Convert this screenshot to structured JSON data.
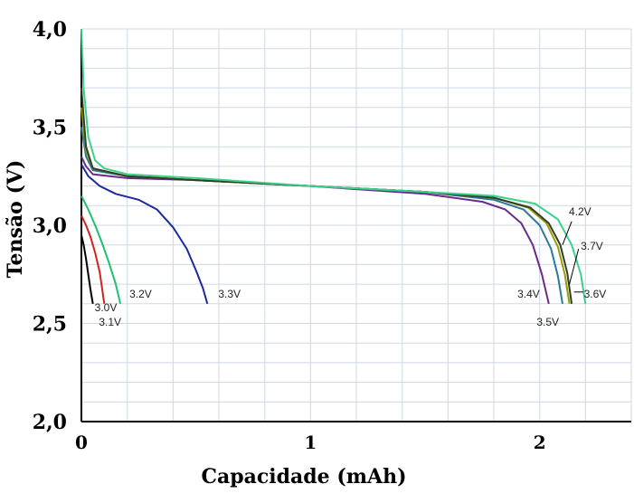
{
  "chart_data": {
    "type": "line",
    "title": "",
    "xlabel": "Capacidade (mAh)",
    "ylabel": "Tensão (V)",
    "xlim": [
      0,
      2.4
    ],
    "ylim": [
      2.0,
      4.0
    ],
    "x_ticks": [
      0,
      1,
      2
    ],
    "x_tick_labels": [
      "0",
      "1",
      "2"
    ],
    "y_ticks": [
      2.0,
      2.5,
      3.0,
      3.5,
      4.0
    ],
    "y_tick_labels": [
      "2,0",
      "2,5",
      "3,0",
      "3,5",
      "4,0"
    ],
    "grid": true,
    "series": [
      {
        "name": "3.0V",
        "color": "#000000",
        "x": [
          0.0,
          0.01,
          0.02,
          0.03,
          0.04,
          0.05
        ],
        "y": [
          2.95,
          2.9,
          2.83,
          2.75,
          2.67,
          2.6
        ]
      },
      {
        "name": "3.1V",
        "color": "#d42020",
        "x": [
          0.0,
          0.02,
          0.04,
          0.06,
          0.08,
          0.09,
          0.1
        ],
        "y": [
          3.05,
          3.0,
          2.94,
          2.86,
          2.76,
          2.68,
          2.6
        ]
      },
      {
        "name": "3.2V",
        "color": "#20c070",
        "x": [
          0.0,
          0.03,
          0.06,
          0.09,
          0.12,
          0.15,
          0.17
        ],
        "y": [
          3.15,
          3.08,
          3.0,
          2.91,
          2.81,
          2.7,
          2.6
        ]
      },
      {
        "name": "3.3V",
        "color": "#1c2b9c",
        "x": [
          0.0,
          0.03,
          0.08,
          0.15,
          0.25,
          0.33,
          0.4,
          0.46,
          0.5,
          0.53,
          0.55
        ],
        "y": [
          3.31,
          3.25,
          3.2,
          3.16,
          3.13,
          3.08,
          2.99,
          2.88,
          2.77,
          2.68,
          2.6
        ]
      },
      {
        "name": "3.4V",
        "color": "#6a2a8a",
        "x": [
          0.0,
          0.02,
          0.05,
          0.2,
          0.5,
          1.0,
          1.5,
          1.75,
          1.85,
          1.92,
          1.97,
          2.01,
          2.04
        ],
        "y": [
          3.35,
          3.3,
          3.26,
          3.24,
          3.23,
          3.2,
          3.16,
          3.12,
          3.08,
          3.01,
          2.9,
          2.75,
          2.6
        ]
      },
      {
        "name": "3.5V",
        "color": "#2a7a9a",
        "x": [
          0.0,
          0.02,
          0.05,
          0.2,
          0.5,
          1.0,
          1.5,
          1.8,
          1.93,
          2.0,
          2.05,
          2.08,
          2.1
        ],
        "y": [
          3.5,
          3.35,
          3.28,
          3.25,
          3.23,
          3.2,
          3.17,
          3.13,
          3.08,
          3.0,
          2.88,
          2.74,
          2.6
        ]
      },
      {
        "name": "3.6V",
        "color": "#9a9a10",
        "x": [
          0.0,
          0.02,
          0.05,
          0.2,
          0.5,
          1.0,
          1.5,
          1.8,
          1.95,
          2.03,
          2.08,
          2.11,
          2.13
        ],
        "y": [
          3.6,
          3.38,
          3.29,
          3.25,
          3.23,
          3.2,
          3.17,
          3.14,
          3.09,
          3.01,
          2.89,
          2.75,
          2.6
        ]
      },
      {
        "name": "3.7V",
        "color": "#304020",
        "x": [
          0.0,
          0.02,
          0.05,
          0.2,
          0.5,
          1.0,
          1.5,
          1.8,
          1.96,
          2.04,
          2.09,
          2.12,
          2.14
        ],
        "y": [
          3.7,
          3.4,
          3.29,
          3.25,
          3.23,
          3.2,
          3.17,
          3.14,
          3.09,
          3.01,
          2.9,
          2.76,
          2.6
        ]
      },
      {
        "name": "4.2V",
        "color": "#3cd08c",
        "x": [
          0.0,
          0.01,
          0.03,
          0.06,
          0.1,
          0.2,
          0.5,
          1.0,
          1.5,
          1.8,
          1.98,
          2.08,
          2.14,
          2.18,
          2.2
        ],
        "y": [
          4.0,
          3.7,
          3.45,
          3.33,
          3.29,
          3.26,
          3.24,
          3.2,
          3.17,
          3.15,
          3.11,
          3.03,
          2.9,
          2.75,
          2.6
        ]
      }
    ],
    "annotations": [
      "3.0V",
      "3.1V",
      "3.2V",
      "3.3V",
      "3.4V",
      "3.5V",
      "3.6V",
      "3.7V",
      "4.2V"
    ]
  }
}
